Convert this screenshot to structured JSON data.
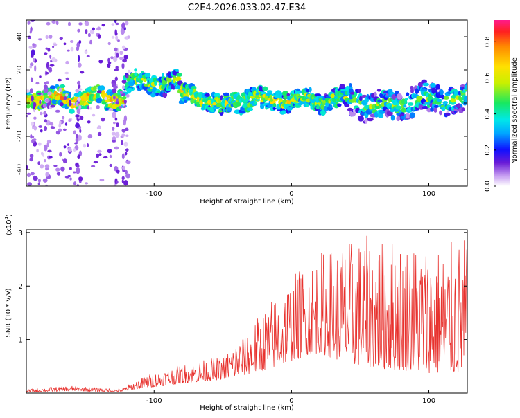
{
  "title": "C2E4.2026.033.02.47.E34",
  "chart_data": [
    {
      "type": "heatmap",
      "title": "C2E4.2026.033.02.47.E34",
      "xlabel": "Height of straight line (km)",
      "ylabel": "Frequency (Hz)",
      "xlim": [
        -193,
        128
      ],
      "ylim": [
        -50,
        50
      ],
      "xticks": [
        -100,
        0,
        100
      ],
      "yticks": [
        -40,
        -20,
        0,
        20,
        40
      ],
      "colorbar": {
        "label": "Normalized spectral amplitude",
        "range": [
          0.0,
          0.92
        ],
        "ticks": [
          0.0,
          0.2,
          0.4,
          0.6,
          0.8
        ]
      },
      "ridge": {
        "segments": [
          {
            "x_range": [
              -193,
              -122
            ],
            "center_hz": 3,
            "amplitude": 0.75
          },
          {
            "x_range": [
              -122,
              -82
            ],
            "center_hz": 12,
            "amplitude": 0.55
          },
          {
            "x_range": [
              -82,
              0
            ],
            "center_hz": 2,
            "amplitude": 0.6
          },
          {
            "x_range": [
              0,
              128
            ],
            "center_hz": 2,
            "amplitude": 0.55
          }
        ],
        "vertical_streaks_km": [
          -188,
          -178,
          -155,
          -128,
          -122
        ]
      }
    },
    {
      "type": "line",
      "xlabel": "Height of straight line (km)",
      "ylabel": "SNR (10 * v/v)",
      "y_multiplier": "(x10",
      "y_multiplier_exp": "4",
      "y_multiplier_close": ")",
      "xlim": [
        -193,
        128
      ],
      "ylim": [
        0,
        3.05
      ],
      "xticks": [
        -100,
        0,
        100
      ],
      "yticks": [
        1,
        2,
        3
      ],
      "series": [
        {
          "name": "SNR",
          "color": "#e8322e",
          "envelope": [
            {
              "x": -193,
              "base": 0.02,
              "amp": 0.05
            },
            {
              "x": -160,
              "base": 0.04,
              "amp": 0.1
            },
            {
              "x": -125,
              "base": 0.02,
              "amp": 0.05
            },
            {
              "x": -105,
              "base": 0.1,
              "amp": 0.25
            },
            {
              "x": -80,
              "base": 0.18,
              "amp": 0.35
            },
            {
              "x": -50,
              "base": 0.25,
              "amp": 0.45
            },
            {
              "x": -30,
              "base": 0.35,
              "amp": 0.9
            },
            {
              "x": -15,
              "base": 0.45,
              "amp": 1.3
            },
            {
              "x": 0,
              "base": 0.6,
              "amp": 1.6
            },
            {
              "x": 20,
              "base": 0.75,
              "amp": 1.9
            },
            {
              "x": 40,
              "base": 0.55,
              "amp": 2.3
            },
            {
              "x": 65,
              "base": 0.45,
              "amp": 2.55
            },
            {
              "x": 90,
              "base": 0.4,
              "amp": 2.45
            },
            {
              "x": 110,
              "base": 0.35,
              "amp": 2.4
            },
            {
              "x": 128,
              "base": 0.35,
              "amp": 2.6
            }
          ]
        }
      ]
    }
  ]
}
